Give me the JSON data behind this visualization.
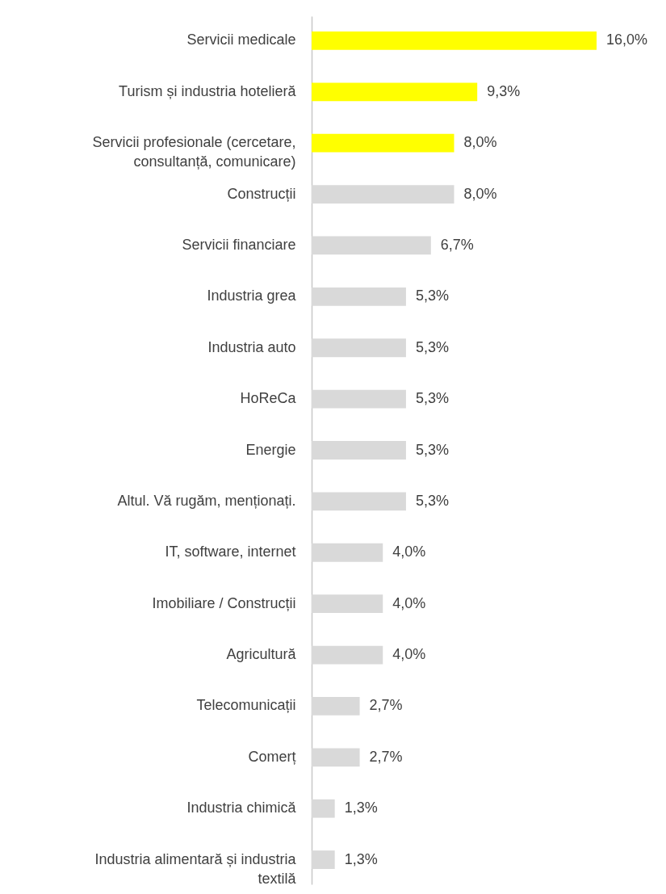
{
  "chart_data": {
    "type": "bar",
    "orientation": "horizontal",
    "tick_labels": "y",
    "categories": [
      "Servicii medicale",
      "Turism și industria hotelieră",
      "Servicii profesionale (cercetare, consultanță, comunicare)",
      "Construcții",
      "Servicii financiare",
      "Industria grea",
      "Industria auto",
      "HoReCa",
      "Energie",
      "Altul. Vă rugăm, menționați.",
      "IT, software, internet",
      "Imobiliare / Construcții",
      "Agricultură",
      "Telecomunicații",
      "Comerț",
      "Industria chimică",
      "Industria alimentară și industria textilă"
    ],
    "values": [
      16.0,
      9.3,
      8.0,
      8.0,
      6.7,
      5.3,
      5.3,
      5.3,
      5.3,
      5.3,
      4.0,
      4.0,
      4.0,
      2.7,
      2.7,
      1.3,
      1.3
    ],
    "colors": [
      "#ffff00",
      "#ffff00",
      "#ffff00",
      "#d9d9d9",
      "#d9d9d9",
      "#d9d9d9",
      "#d9d9d9",
      "#d9d9d9",
      "#d9d9d9",
      "#d9d9d9",
      "#d9d9d9",
      "#d9d9d9",
      "#d9d9d9",
      "#d9d9d9",
      "#d9d9d9",
      "#d9d9d9",
      "#d9d9d9"
    ],
    "value_labels": [
      "16,0%",
      "9,3%",
      "8,0%",
      "8,0%",
      "6,7%",
      "5,3%",
      "5,3%",
      "5,3%",
      "5,3%",
      "5,3%",
      "4,0%",
      "4,0%",
      "4,0%",
      "2,7%",
      "2,7%",
      "1,3%",
      "1,3%"
    ]
  }
}
